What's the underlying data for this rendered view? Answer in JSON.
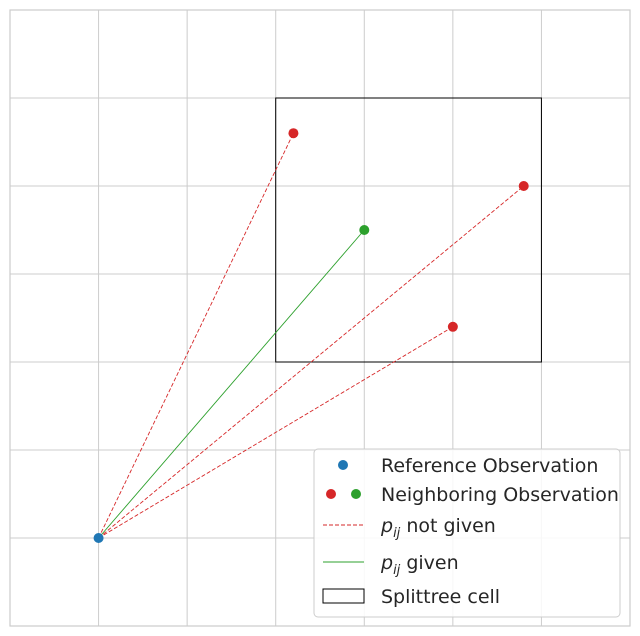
{
  "chart_data": {
    "type": "scatter",
    "title": "",
    "xlabel": "",
    "ylabel": "",
    "xlim": [
      0,
      7
    ],
    "ylim": [
      0,
      7
    ],
    "grid": true,
    "tick_labels_shown": false,
    "reference_point": {
      "x": 1.0,
      "y": 1.0,
      "color": "#1f77b4"
    },
    "neighbors": [
      {
        "x": 3.2,
        "y": 5.6,
        "color": "#d62728",
        "pij_given": false
      },
      {
        "x": 4.0,
        "y": 4.5,
        "color": "#2ca02c",
        "pij_given": true
      },
      {
        "x": 5.8,
        "y": 5.0,
        "color": "#d62728",
        "pij_given": false
      },
      {
        "x": 5.0,
        "y": 3.4,
        "color": "#d62728",
        "pij_given": false
      }
    ],
    "splittree_cell": {
      "x0": 3.0,
      "x1": 6.0,
      "y0": 3.0,
      "y1": 6.0
    },
    "legend": {
      "position": "lower-right",
      "entries": [
        {
          "label": "Reference Observation",
          "marker": "dot",
          "colors": [
            "#1f77b4"
          ]
        },
        {
          "label": "Neighboring Observation",
          "marker": "dots",
          "colors": [
            "#d62728",
            "#2ca02c"
          ]
        },
        {
          "label_main": "p",
          "label_sub": "ij",
          "label_rest": " not given",
          "marker": "dashed-line",
          "colors": [
            "#d62728"
          ]
        },
        {
          "label_main": "p",
          "label_sub": "ij",
          "label_rest": " given",
          "marker": "solid-line",
          "colors": [
            "#2ca02c"
          ]
        },
        {
          "label": "Splittree cell",
          "marker": "rectangle",
          "colors": [
            "#000000"
          ]
        }
      ]
    }
  },
  "colors": {
    "grid": "#cccccc",
    "frame": "#cccccc",
    "background": "#ffffff",
    "text": "#262626"
  }
}
